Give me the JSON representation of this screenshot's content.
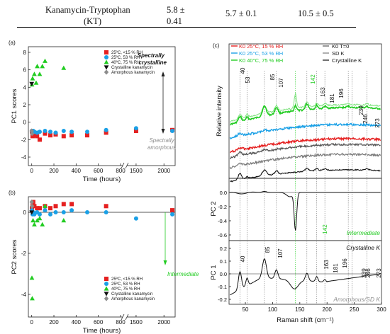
{
  "table": {
    "label_line1": "Kanamycin-Tryptophan",
    "label_line2": "(KT)",
    "val1_line1": "5.8 ±",
    "val1_line2": "0.41",
    "val2": "5.7 ± 0.1",
    "val3": "10.5 ± 0.5"
  },
  "colors": {
    "red": "#e52020",
    "blue": "#1aa0e6",
    "green": "#22cc22",
    "black": "#111111",
    "gray": "#8c8c8c",
    "gray2": "#7a7a7a",
    "ann_green": "#22cc22",
    "ann_gray": "#8f8f8f"
  },
  "chart_data": [
    {
      "type": "scatter",
      "panel_label": "(a)",
      "xlabel": "Time (hours)",
      "ylabel": "PC1 scores",
      "x_ticks": [
        "0",
        "200",
        "400",
        "600",
        "800",
        "1500",
        "2000"
      ],
      "y_ticks": [
        "-4",
        "-2",
        "0",
        "2",
        "4",
        "6",
        "8"
      ],
      "ylim": [
        -4,
        8
      ],
      "x_break": true,
      "legend": [
        "25ºC, <15 % RH",
        "25ºC, 53 % RH",
        "40ºC, 75 % RH",
        "Crystalline kanamycin",
        "Amorphous kanamycin"
      ],
      "annotations": {
        "top": [
          "Spectrally",
          "crystalline"
        ],
        "bottom": [
          "Spectrally",
          "amorphous"
        ]
      },
      "series": [
        {
          "name": "25ºC, <15 % RH",
          "marker": "square",
          "color": "red",
          "points": [
            [
              2,
              -1.1
            ],
            [
              8,
              -1.6
            ],
            [
              14,
              -1.3
            ],
            [
              24,
              -1.5
            ],
            [
              48,
              -1.6
            ],
            [
              72,
              -2.0
            ],
            [
              120,
              -1.3
            ],
            [
              168,
              -1.5
            ],
            [
              216,
              -1.4
            ],
            [
              288,
              -1.6
            ],
            [
              360,
              -1.5
            ],
            [
              500,
              -1.5
            ],
            [
              670,
              -1.2
            ],
            [
              1500,
              -1.0
            ],
            [
              2150,
              -0.9
            ]
          ]
        },
        {
          "name": "25ºC, 53 % RH",
          "marker": "circle",
          "color": "blue",
          "points": [
            [
              2,
              -1.0
            ],
            [
              8,
              -1.2
            ],
            [
              14,
              -1.0
            ],
            [
              24,
              -1.1
            ],
            [
              48,
              -1.2
            ],
            [
              72,
              -1.1
            ],
            [
              120,
              -1.0
            ],
            [
              168,
              -1.1
            ],
            [
              216,
              -1.2
            ],
            [
              288,
              -1.0
            ],
            [
              360,
              -1.1
            ],
            [
              500,
              -1.1
            ],
            [
              670,
              -0.9
            ],
            [
              1500,
              -0.7
            ],
            [
              2150,
              -1.0
            ]
          ]
        },
        {
          "name": "40ºC, 75 % RH",
          "marker": "triangle",
          "color": "green",
          "points": [
            [
              2,
              4.3
            ],
            [
              8,
              5.0
            ],
            [
              24,
              5.5
            ],
            [
              50,
              6.4
            ],
            [
              72,
              5.5
            ],
            [
              96,
              6.4
            ],
            [
              120,
              7.0
            ],
            [
              288,
              6.2
            ],
            [
              40,
              4.5
            ]
          ]
        },
        {
          "name": "Crystalline kanamycin",
          "marker": "tri-down",
          "color": "black",
          "points": [
            [
              0,
              4.4
            ]
          ]
        },
        {
          "name": "Amorphous kanamycin",
          "marker": "diamond",
          "color": "gray",
          "points": [
            [
              0,
              -1.0
            ],
            [
              3,
              -1.3
            ]
          ]
        }
      ]
    },
    {
      "type": "scatter",
      "panel_label": "(b)",
      "xlabel": "Time (hours)",
      "ylabel": "PC2 scores",
      "x_ticks": [
        "0",
        "200",
        "400",
        "600",
        "800",
        "1500",
        "2000"
      ],
      "y_ticks": [
        "-4",
        "-2",
        "0"
      ],
      "ylim": [
        -5,
        1
      ],
      "x_break": true,
      "legend": [
        "25ºC, <15 % RH",
        "25ºC, 53 % RH",
        "40ºC, 75 % RH",
        "Crystalline kanamycin",
        "Amorphous kanamycin"
      ],
      "annotations": {
        "bottom": [
          "Intermediate"
        ]
      },
      "series": [
        {
          "name": "25ºC, <15 % RH",
          "marker": "square",
          "color": "red",
          "points": [
            [
              2,
              0.2
            ],
            [
              8,
              0.4
            ],
            [
              14,
              0.5
            ],
            [
              24,
              0.3
            ],
            [
              48,
              0.2
            ],
            [
              72,
              0.2
            ],
            [
              120,
              0.3
            ],
            [
              168,
              0.2
            ],
            [
              216,
              0.3
            ],
            [
              288,
              0.4
            ],
            [
              360,
              0.4
            ],
            [
              670,
              0.3
            ],
            [
              2150,
              0.1
            ]
          ]
        },
        {
          "name": "25ºC, 53 % RH",
          "marker": "circle",
          "color": "blue",
          "points": [
            [
              2,
              0.1
            ],
            [
              8,
              -0.1
            ],
            [
              14,
              0.0
            ],
            [
              24,
              -0.1
            ],
            [
              48,
              0.0
            ],
            [
              72,
              -0.1
            ],
            [
              120,
              0.1
            ],
            [
              168,
              -0.1
            ],
            [
              216,
              0.0
            ],
            [
              288,
              0.0
            ],
            [
              360,
              0.1
            ],
            [
              500,
              0.0
            ],
            [
              670,
              0.0
            ],
            [
              1500,
              -0.3
            ],
            [
              2150,
              -0.1
            ]
          ]
        },
        {
          "name": "40ºC, 75 % RH",
          "marker": "triangle",
          "color": "green",
          "points": [
            [
              2,
              -3.2
            ],
            [
              5,
              -4.2
            ],
            [
              12,
              -0.4
            ],
            [
              24,
              -0.6
            ],
            [
              50,
              -0.4
            ],
            [
              72,
              -0.3
            ],
            [
              96,
              -0.6
            ],
            [
              120,
              0.3
            ],
            [
              288,
              -0.4
            ]
          ]
        },
        {
          "name": "Crystalline kanamycin",
          "marker": "tri-down",
          "color": "black",
          "points": [
            [
              0,
              0.0
            ]
          ]
        },
        {
          "name": "Amorphous kanamycin",
          "marker": "diamond",
          "color": "gray",
          "points": [
            [
              0,
              0.5
            ],
            [
              3,
              0.3
            ]
          ]
        }
      ]
    },
    {
      "type": "line",
      "panel_label": "(c)",
      "xlabel": "Raman shift (cm⁻¹)",
      "x_ticks": [
        "50",
        "100",
        "150",
        "200",
        "250",
        "300"
      ],
      "xlim": [
        20,
        300
      ],
      "top": {
        "ylabel": "Relative intensity",
        "legend_left": [
          "K0 25°C, 15 % RH",
          "K0 25°C, 53 % RH",
          "K0 40°C, 75 % RH"
        ],
        "legend_right": [
          "K0 T=0",
          "SD K",
          "Crystalline K"
        ],
        "peak_labels": [
          "40",
          "53",
          "85",
          "107",
          "142",
          "163",
          "181",
          "196",
          "239",
          "246",
          "273"
        ],
        "peak_positions": [
          40,
          53,
          85,
          107,
          142,
          163,
          181,
          196,
          239,
          246,
          273
        ]
      },
      "middle": {
        "ylabel": "PC 2",
        "y_ticks": [
          "0.0",
          "-0.2",
          "-0.4",
          "-0.6"
        ],
        "ylim": [
          -0.6,
          0.1
        ],
        "peak_label": "142",
        "annotation": "Intermediate"
      },
      "bottom": {
        "ylabel": "PC 1",
        "y_ticks": [
          "0.2",
          "0.1",
          "0.0",
          "-0.1",
          "-0.2"
        ],
        "ylim": [
          -0.22,
          0.22
        ],
        "peak_labels": [
          "40",
          "85",
          "107",
          "163",
          "181",
          "196",
          "239",
          "246",
          "273"
        ],
        "annotation_top": "Crystalline K",
        "annotation_bottom": "Amorphous/SD K"
      }
    }
  ]
}
